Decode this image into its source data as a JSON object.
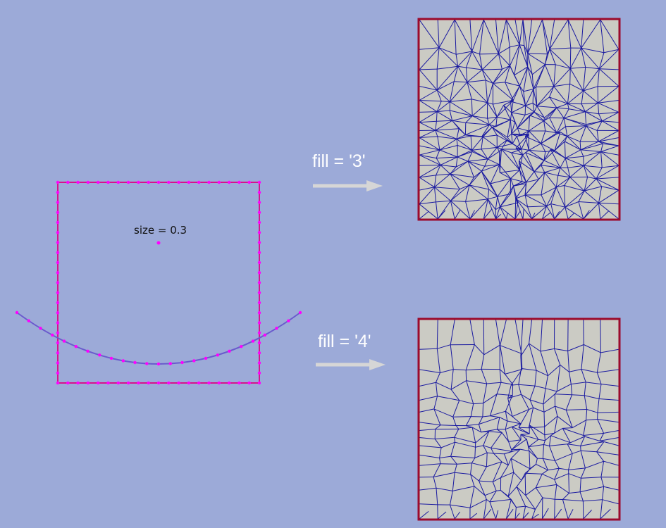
{
  "input": {
    "size_label": "size = 0.3"
  },
  "outputs": [
    {
      "label": "fill = '3'",
      "mesh": "triangle"
    },
    {
      "label": "fill = '4'",
      "mesh": "quad"
    }
  ],
  "colors": {
    "background": "#9caad8",
    "node": "#ff00ff",
    "boundary": "#d4148c",
    "curve": "#6a5acd",
    "mesh_fill": "#cbcbc4",
    "mesh_edge": "#1a1aa0",
    "mesh_border": "#9b0a2c",
    "arrow": "#d6d6d6"
  }
}
